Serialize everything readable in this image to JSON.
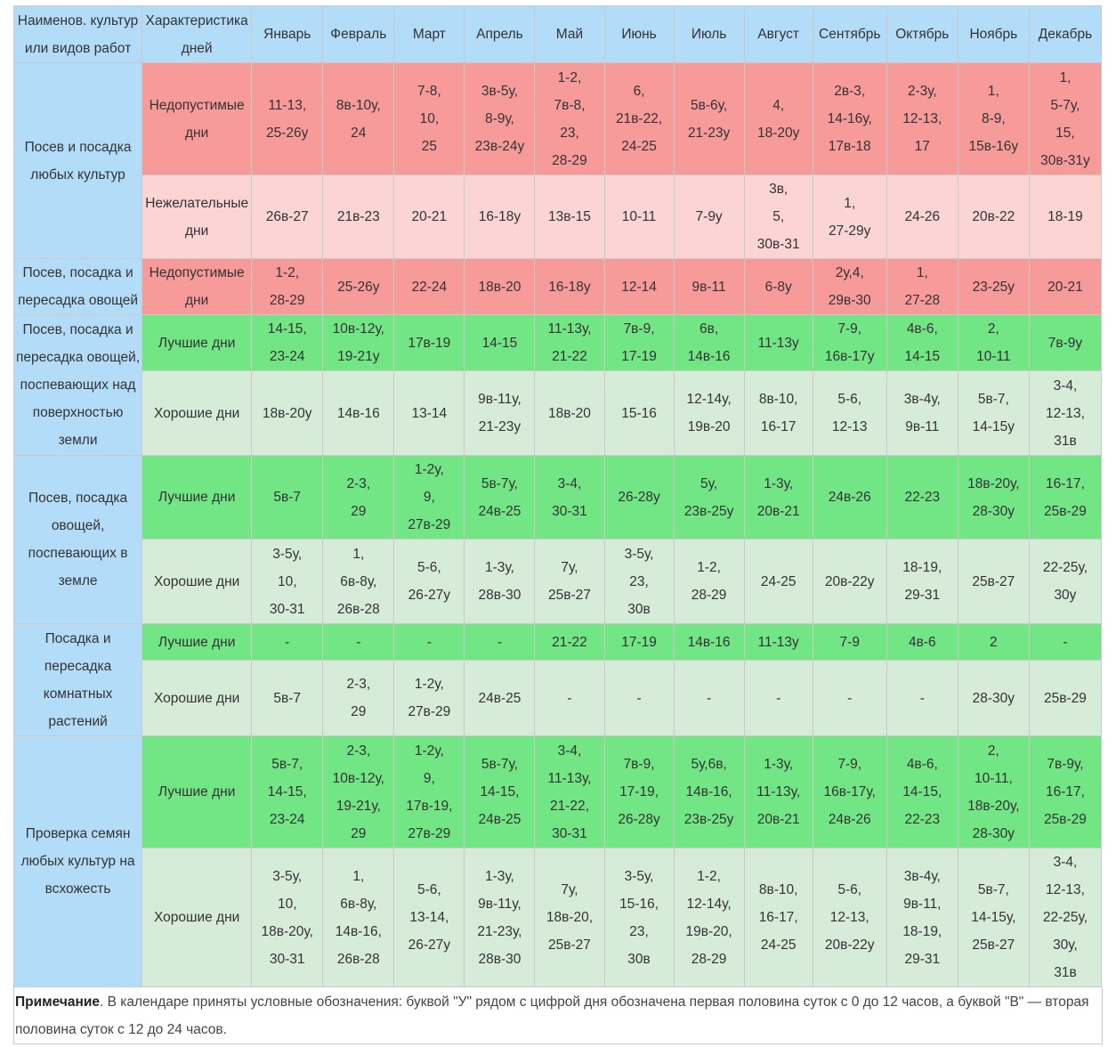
{
  "headers": [
    "Наименов. культур или видов работ",
    "Характеристика дней",
    "Январь",
    "Февраль",
    "Март",
    "Апрель",
    "Май",
    "Июнь",
    "Июль",
    "Август",
    "Сентябрь",
    "Октябрь",
    "Ноябрь",
    "Декабрь"
  ],
  "rows": [
    {
      "category": "Посев и посадка любых культур",
      "rowspan": 2,
      "type": "Недопустимые дни",
      "color": "red",
      "h": 126,
      "cells": [
        "11-13,\n25-26у",
        "8в-10у,\n24",
        "7-8,\n10,\n25",
        "3в-5у,\n8-9у,\n23в-24у",
        "1-2,\n7в-8,\n23,\n28-29",
        "6,\n21в-22,\n24-25",
        "5в-6у,\n21-23у",
        "4,\n18-20у",
        "2в-3,\n14-16у,\n17в-18",
        "2-3у,\n12-13,\n17",
        "1,\n8-9,\n15в-16у",
        "1,\n5-7у,\n15,\n30в-31у"
      ]
    },
    {
      "type": "Нежелательные дни",
      "color": "pink",
      "h": 94,
      "cells": [
        "26в-27",
        "21в-23",
        "20-21",
        "16-18у",
        "13в-15",
        "10-11",
        "7-9у",
        "3в,\n5,\n30в-31",
        "1,\n27-29у",
        "24-26",
        "20в-22",
        "18-19"
      ]
    },
    {
      "category": "Посев, посадка и пересадка овощей",
      "rowspan": 1,
      "type": "Недопустимые дни",
      "color": "red",
      "h": 63,
      "cells": [
        "1-2,\n28-29",
        "25-26у",
        "22-24",
        "18в-20",
        "16-18у",
        "12-14",
        "9в-11",
        "6-8у",
        "2у,4,\n29в-30",
        "1,\n27-28",
        "23-25у",
        "20-21"
      ]
    },
    {
      "category": "Посев, посадка и пересадка овощей, поспевающих над поверхностью земли",
      "rowspan": 2,
      "type": "Лучшие дни",
      "color": "green",
      "h": 63,
      "cells": [
        "14-15,\n23-24",
        "10в-12у,\n19-21у",
        "17в-19",
        "14-15",
        "11-13у,\n21-22",
        "7в-9,\n17-19",
        "6в,\n14в-16",
        "11-13у",
        "7-9,\n16в-17у",
        "4в-6,\n14-15",
        "2,\n10-11",
        "7в-9у"
      ]
    },
    {
      "type": "Хорошие дни",
      "color": "lgreen",
      "h": 95,
      "cells": [
        "18в-20у",
        "14в-16",
        "13-14",
        "9в-11у,\n21-23у",
        "18в-20",
        "15-16",
        "12-14у,\n19в-20",
        "8в-10,\n16-17",
        "5-6,\n12-13",
        "3в-4у,\n9в-11",
        "5в-7,\n14-15у",
        "3-4,\n12-13,\n31в"
      ]
    },
    {
      "category": "Посев, посадка овощей, поспевающих в земле",
      "rowspan": 2,
      "type": "Лучшие дни",
      "color": "green",
      "h": 94,
      "cells": [
        "5в-7",
        "2-3,\n29",
        "1-2у,\n9,\n27в-29",
        "5в-7у,\n24в-25",
        "3-4,\n30-31",
        "26-28у",
        "5у,\n23в-25у",
        "1-3у,\n20в-21",
        "24в-26",
        "22-23",
        "18в-20у,\n28-30у",
        "16-17,\n25в-29"
      ]
    },
    {
      "type": "Хорошие дни",
      "color": "lgreen",
      "h": 95,
      "cells": [
        "3-5у,\n10,\n30-31",
        "1,\n6в-8у,\n26в-28",
        "5-6,\n26-27у",
        "1-3у,\n28в-30",
        "7у,\n25в-27",
        "3-5у,\n23,\n30в",
        "1-2,\n28-29",
        "24-25",
        "20в-22у",
        "18-19,\n29-31",
        "25в-27",
        "22-25у,\n30у"
      ]
    },
    {
      "category": "Посадка и пересадка комнатных растений",
      "rowspan": 2,
      "type": "Лучшие дни",
      "color": "green",
      "h": 41,
      "cells": [
        "-",
        "-",
        "-",
        "-",
        "21-22",
        "17-19",
        "14в-16",
        "11-13у",
        "7-9",
        "4в-6",
        "2",
        "-"
      ]
    },
    {
      "type": "Хорошие дни",
      "color": "lgreen",
      "h": 85,
      "cells": [
        "5в-7",
        "2-3,\n29",
        "1-2у,\n27в-29",
        "24в-25",
        "-",
        "-",
        "-",
        "-",
        "-",
        "-",
        "28-30у",
        "25в-29"
      ]
    },
    {
      "category": "Проверка семян любых культур на всхожесть",
      "rowspan": 2,
      "type": "Лучшие дни",
      "color": "green",
      "h": 126,
      "cells": [
        "5в-7,\n14-15,\n23-24",
        "2-3,\n10в-12у,\n19-21у,\n29",
        "1-2у,\n9,\n17в-19,\n27в-29",
        "5в-7у,\n14-15,\n24в-25",
        "3-4,\n11-13у,\n21-22,\n30-31",
        "7в-9,\n17-19,\n26-28у",
        "5у,6в,\n14в-16,\n23в-25у",
        "1-3у,\n11-13у,\n20в-21",
        "7-9,\n16в-17у,\n24в-26",
        "4в-6,\n14-15,\n22-23",
        "2,\n10-11,\n18в-20у,\n28-30у",
        "7в-9у,\n16-17,\n25в-29"
      ]
    },
    {
      "type": "Хорошие дни",
      "color": "lgreen",
      "h": 156,
      "cells": [
        "3-5у,\n10,\n18в-20у,\n30-31",
        "1,\n6в-8у,\n14в-16,\n26в-28",
        "5-6,\n13-14,\n26-27у",
        "1-3у,\n9в-11у,\n21-23у,\n28в-30",
        "7у,\n18в-20,\n25в-27",
        "3-5у,\n15-16,\n23,\n30в",
        "1-2,\n12-14у,\n19в-20,\n28-29",
        "8в-10,\n16-17,\n24-25",
        "5-6,\n12-13,\n20в-22у",
        "3в-4у,\n9в-11,\n18-19,\n29-31",
        "5в-7,\n14-15у,\n25в-27",
        "3-4,\n12-13,\n22-25у,\n30у,\n31в"
      ]
    }
  ],
  "note": {
    "label": "Примечание",
    "text": ". В календаре приняты условные обозначения: буквой \"У\" рядом с цифрой дня обозначена первая половина суток с 0 до 12 часов, а буквой \"В\" — вторая половина суток с 12 до 24 часов."
  }
}
